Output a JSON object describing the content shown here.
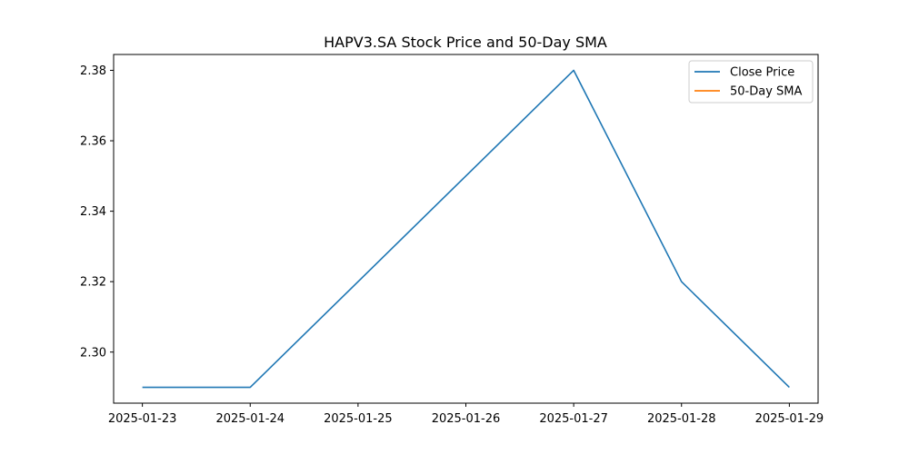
{
  "chart_data": {
    "type": "line",
    "title": "HAPV3.SA Stock Price and 50-Day SMA",
    "xlabel": "",
    "ylabel": "",
    "x": [
      "2025-01-23",
      "2025-01-24",
      "2025-01-25",
      "2025-01-26",
      "2025-01-27",
      "2025-01-28",
      "2025-01-29"
    ],
    "series": [
      {
        "name": "Close Price",
        "color": "#1f77b4",
        "x": [
          "2025-01-23",
          "2025-01-24",
          "2025-01-27",
          "2025-01-28",
          "2025-01-29"
        ],
        "values": [
          2.29,
          2.29,
          2.38,
          2.32,
          2.29
        ]
      },
      {
        "name": "50-Day SMA",
        "color": "#ff7f0e",
        "x": [],
        "values": []
      }
    ],
    "xticks": [
      "2025-01-23",
      "2025-01-24",
      "2025-01-25",
      "2025-01-26",
      "2025-01-27",
      "2025-01-28",
      "2025-01-29"
    ],
    "yticks": [
      "2.30",
      "2.32",
      "2.34",
      "2.36",
      "2.38"
    ],
    "ylim": [
      2.2855,
      2.3845
    ],
    "xlim": [
      "2025-01-22 17:36",
      "2025-01-29 06:24"
    ],
    "grid": false,
    "legend_position": "top-right"
  }
}
